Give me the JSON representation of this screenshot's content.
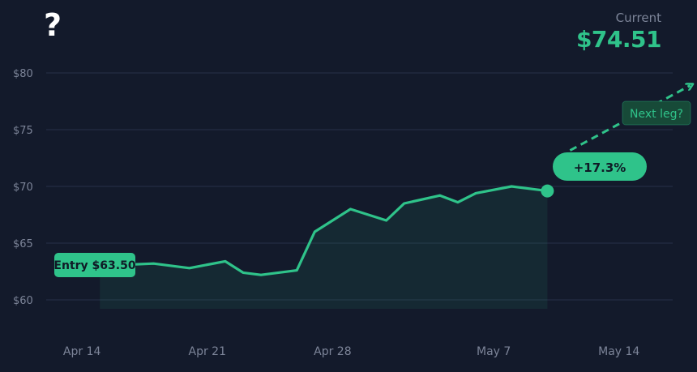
{
  "header": {
    "icon_glyph": "?",
    "icon_name": "question-mark-icon",
    "current_label": "Current",
    "current_value": "$74.51"
  },
  "annotations": {
    "entry_label": "Entry $63.50",
    "gain_label": "+17.3%",
    "next_label": "Next leg?"
  },
  "colors": {
    "background": "#131a2b",
    "accent": "#2fc38a",
    "grid": "#273048",
    "axis_text": "#7c8498",
    "badge_dark": "#174a38",
    "badge_text_dark": "#0f1a26"
  },
  "chart_data": {
    "type": "line",
    "title": "",
    "xlabel": "",
    "ylabel": "",
    "ylim": [
      60,
      80
    ],
    "yticks": [
      60,
      65,
      70,
      75,
      80
    ],
    "ytick_labels": [
      "$60",
      "$65",
      "$70",
      "$75",
      "$80"
    ],
    "xticks": [
      {
        "date": "2024-04-14",
        "label": "Apr 14"
      },
      {
        "date": "2024-04-21",
        "label": "Apr 21"
      },
      {
        "date": "2024-04-28",
        "label": "Apr 28"
      },
      {
        "date": "2024-05-07",
        "label": "May 7"
      },
      {
        "date": "2024-05-14",
        "label": "May 14"
      }
    ],
    "x_range": [
      "2024-04-12",
      "2024-05-17"
    ],
    "grid": true,
    "series": [
      {
        "values": [
          {
            "x": "2024-04-15",
            "y": 63.0
          },
          {
            "x": "2024-04-18",
            "y": 63.2
          },
          {
            "x": "2024-04-20",
            "y": 62.8
          },
          {
            "x": "2024-04-22",
            "y": 63.4
          },
          {
            "x": "2024-04-23",
            "y": 62.4
          },
          {
            "x": "2024-04-24",
            "y": 62.2
          },
          {
            "x": "2024-04-26",
            "y": 62.6
          },
          {
            "x": "2024-04-27",
            "y": 66.0
          },
          {
            "x": "2024-04-29",
            "y": 68.0
          },
          {
            "x": "2024-05-01",
            "y": 67.0
          },
          {
            "x": "2024-05-02",
            "y": 68.5
          },
          {
            "x": "2024-05-04",
            "y": 69.2
          },
          {
            "x": "2024-05-05",
            "y": 68.6
          },
          {
            "x": "2024-05-06",
            "y": 69.4
          },
          {
            "x": "2024-05-08",
            "y": 70.0
          },
          {
            "x": "2024-05-10",
            "y": 69.6
          }
        ]
      }
    ],
    "projection": {
      "from": {
        "x": "2024-05-10",
        "y": 69.6
      },
      "to": {
        "x": "2024-05-14",
        "y": 78.9
      }
    }
  }
}
